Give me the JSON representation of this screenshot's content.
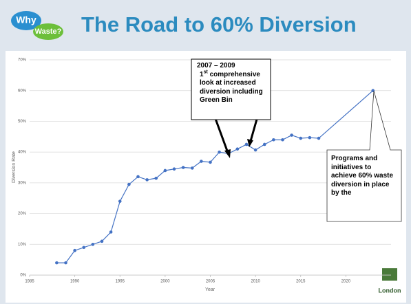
{
  "logo": {
    "top": "Why",
    "bottom": "Waste?"
  },
  "footer_logo": "London",
  "chart_data": {
    "type": "line",
    "title": "The Road to 60% Diversion",
    "x_label": "Year",
    "y_label": "Diversion Rate",
    "x": [
      1988,
      1989,
      1990,
      1991,
      1992,
      1993,
      1994,
      1995,
      1996,
      1997,
      1998,
      1999,
      2000,
      2001,
      2002,
      2003,
      2004,
      2005,
      2006,
      2007,
      2008,
      2009,
      2010,
      2011,
      2012,
      2013,
      2014,
      2015,
      2016,
      2017,
      2023
    ],
    "series": [
      {
        "name": "Diversion Rate",
        "color": "#4472c4",
        "values": [
          4,
          4,
          8,
          9,
          10,
          11,
          14,
          24,
          29.5,
          32,
          31,
          31.5,
          34,
          34.5,
          35,
          34.8,
          37,
          36.7,
          40,
          39.5,
          41,
          42.5,
          40.7,
          42.5,
          44,
          44,
          45.5,
          44.5,
          44.7,
          44.5,
          60
        ]
      }
    ],
    "xlim": [
      1985,
      2025
    ],
    "xticks": [
      1985,
      1990,
      1995,
      2000,
      2005,
      2010,
      2015,
      2020
    ],
    "ylim": [
      0,
      70
    ],
    "yticks": [
      {
        "value": 0,
        "label": "0%"
      },
      {
        "value": 10,
        "label": "10%"
      },
      {
        "value": 20,
        "label": "20%"
      },
      {
        "value": 30,
        "label": "30%"
      },
      {
        "value": 40,
        "label": "40%"
      },
      {
        "value": 50,
        "label": "50%"
      },
      {
        "value": 60,
        "label": "60%"
      },
      {
        "value": 70,
        "label": "70%"
      }
    ],
    "grid": true,
    "annotations": [
      {
        "date": "2007 – 2009",
        "ordinal": "1",
        "ordinal_suffix": "st",
        "text": "comprehensive look at increased diversion including Green Bin"
      },
      {
        "text": "Programs and initiatives to achieve 60% waste diversion in place by the"
      }
    ]
  }
}
